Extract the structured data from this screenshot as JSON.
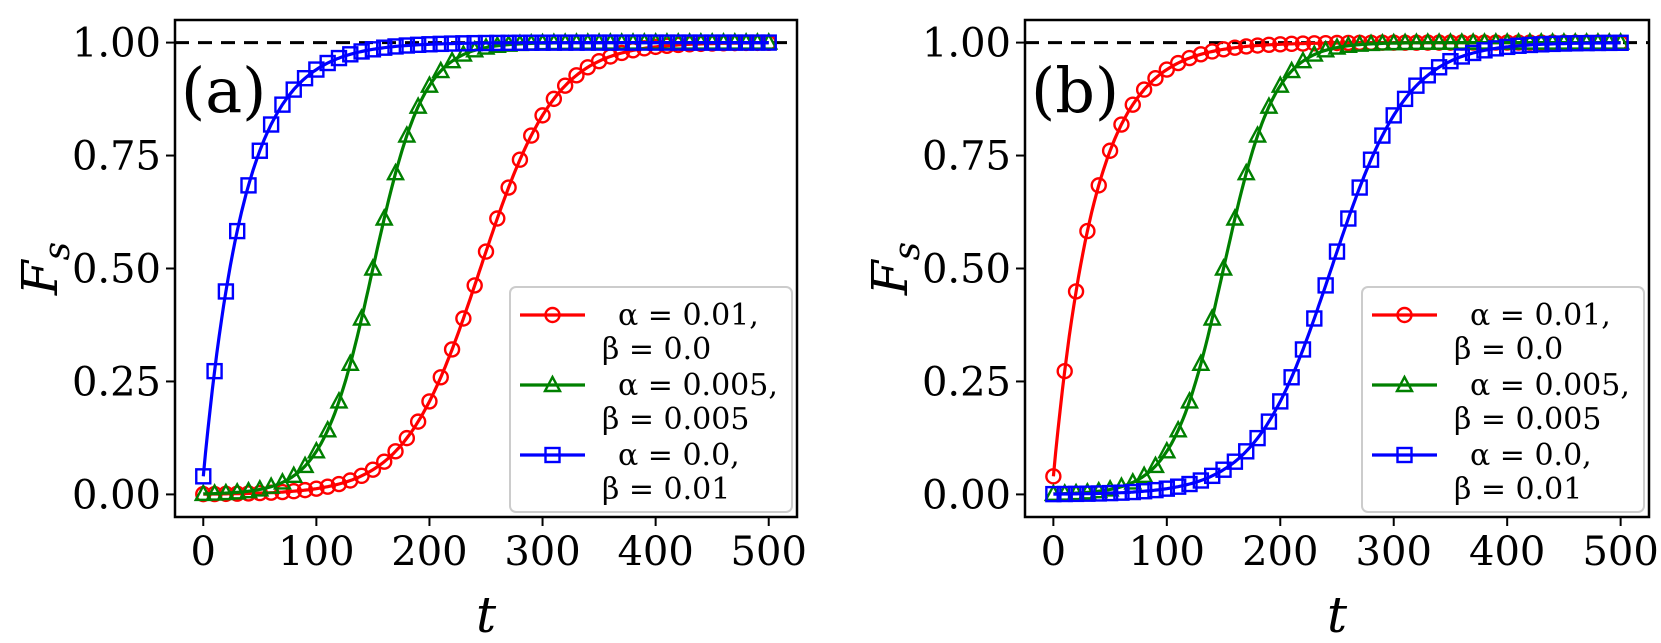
{
  "chart_data": [
    {
      "type": "line",
      "panel_label": "(a)",
      "xlabel": "t",
      "ylabel": "F_s",
      "ylabel_main": "F",
      "ylabel_sub": "s",
      "xlim": [
        -25,
        525
      ],
      "ylim": [
        -0.05,
        1.05
      ],
      "xticks": [
        0,
        100,
        200,
        300,
        400,
        500
      ],
      "xtick_labels": [
        "0",
        "100",
        "200",
        "300",
        "400",
        "500"
      ],
      "yticks": [
        0.0,
        0.25,
        0.5,
        0.75,
        1.0
      ],
      "ytick_labels": [
        "0.00",
        "0.25",
        "0.50",
        "0.75",
        "1.00"
      ],
      "reference_line": {
        "y": 1.0,
        "style": "dashed",
        "color": "#000000"
      },
      "legend_position": "lower-right",
      "series": [
        {
          "name": "α = 0.01, β = 0.0",
          "legend_line1": "α = 0.01,",
          "legend_line2": "β = 0.0",
          "color": "#ff0000",
          "marker": "circle",
          "curve": {
            "kind": "logistic",
            "t0": 245,
            "k": 0.03
          }
        },
        {
          "name": "α = 0.005, β = 0.005",
          "legend_line1": "α = 0.005,",
          "legend_line2": "β = 0.005",
          "color": "#008000",
          "marker": "triangle",
          "curve": {
            "kind": "logistic",
            "t0": 150,
            "k": 0.045
          }
        },
        {
          "name": "α = 0.0, β = 0.01",
          "legend_line1": "α = 0.0,",
          "legend_line2": "β = 0.01",
          "color": "#0000ff",
          "marker": "square",
          "curve": {
            "kind": "saturating",
            "a": 0.04,
            "tau": 36
          }
        }
      ]
    },
    {
      "type": "line",
      "panel_label": "(b)",
      "xlabel": "t",
      "ylabel": "F_s",
      "ylabel_main": "F",
      "ylabel_sub": "s",
      "xlim": [
        -25,
        525
      ],
      "ylim": [
        -0.05,
        1.05
      ],
      "xticks": [
        0,
        100,
        200,
        300,
        400,
        500
      ],
      "xtick_labels": [
        "0",
        "100",
        "200",
        "300",
        "400",
        "500"
      ],
      "yticks": [
        0.0,
        0.25,
        0.5,
        0.75,
        1.0
      ],
      "ytick_labels": [
        "0.00",
        "0.25",
        "0.50",
        "0.75",
        "1.00"
      ],
      "reference_line": {
        "y": 1.0,
        "style": "dashed",
        "color": "#000000"
      },
      "legend_position": "lower-right",
      "series": [
        {
          "name": "α = 0.01, β = 0.0",
          "legend_line1": "α = 0.01,",
          "legend_line2": "β = 0.0",
          "color": "#ff0000",
          "marker": "circle",
          "curve": {
            "kind": "saturating",
            "a": 0.04,
            "tau": 36
          }
        },
        {
          "name": "α = 0.005, β = 0.005",
          "legend_line1": "α = 0.005,",
          "legend_line2": "β = 0.005",
          "color": "#008000",
          "marker": "triangle",
          "curve": {
            "kind": "logistic",
            "t0": 150,
            "k": 0.045
          }
        },
        {
          "name": "α = 0.0, β = 0.01",
          "legend_line1": "α = 0.0,",
          "legend_line2": "β = 0.01",
          "color": "#0000ff",
          "marker": "square",
          "curve": {
            "kind": "logistic",
            "t0": 245,
            "k": 0.03
          }
        }
      ]
    }
  ],
  "sample_times": [
    0,
    10,
    20,
    30,
    40,
    50,
    60,
    70,
    80,
    90,
    100,
    110,
    120,
    130,
    140,
    150,
    160,
    170,
    180,
    190,
    200,
    210,
    220,
    230,
    240,
    250,
    260,
    270,
    280,
    290,
    300,
    310,
    320,
    330,
    340,
    350,
    360,
    370,
    380,
    390,
    400,
    410,
    420,
    430,
    440,
    450,
    460,
    470,
    480,
    490,
    500
  ]
}
